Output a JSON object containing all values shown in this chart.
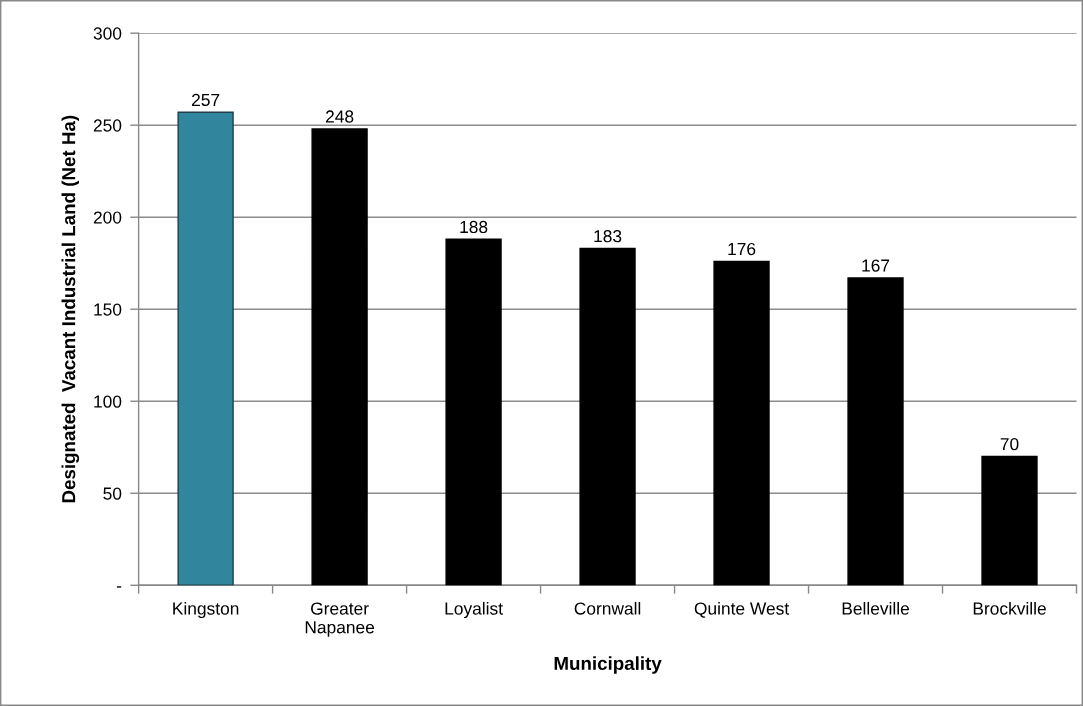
{
  "chart_data": {
    "type": "bar",
    "xlabel": "Municipality",
    "ylabel": "Designated  Vacant Industrial Land (Net Ha)",
    "categories": [
      "Kingston",
      "Greater\nNapanee",
      "Loyalist",
      "Cornwall",
      "Quinte West",
      "Belleville",
      "Brockville"
    ],
    "values": [
      257,
      248,
      188,
      183,
      176,
      167,
      70
    ],
    "colors": [
      "#31859c",
      "#000000",
      "#000000",
      "#000000",
      "#000000",
      "#000000",
      "#000000"
    ],
    "ylim": [
      0,
      300
    ],
    "yticks": [
      {
        "value": 0,
        "label": "-"
      },
      50,
      100,
      150,
      200,
      250,
      300
    ],
    "grid": "y",
    "data_labels": true,
    "legend": false
  }
}
